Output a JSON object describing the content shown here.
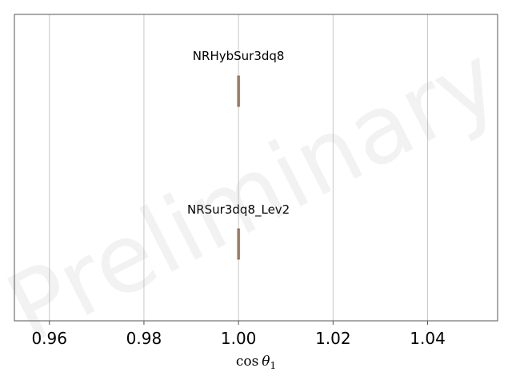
{
  "chart_data": {
    "type": "box",
    "x_label_base": "cos",
    "x_label_var": "θ",
    "x_label_sub": "1",
    "xlim": [
      0.9526,
      1.0548
    ],
    "xticks": [
      0.96,
      0.98,
      1.0,
      1.02,
      1.04
    ],
    "xtick_labels": [
      "0.96",
      "0.98",
      "1.00",
      "1.02",
      "1.04"
    ],
    "grid": "vertical",
    "watermark": "Preliminary",
    "box_color": "#d9b088",
    "edge_color": "#7a5a46",
    "series": [
      {
        "name": "NRHybSur3dq8",
        "low": 1.0,
        "q1": 1.0,
        "median": 1.0,
        "q3": 1.0,
        "high": 1.0
      },
      {
        "name": "NRSur3dq8_Lev2",
        "low": 1.0,
        "q1": 1.0,
        "median": 1.0,
        "q3": 1.0,
        "high": 1.0
      }
    ]
  }
}
